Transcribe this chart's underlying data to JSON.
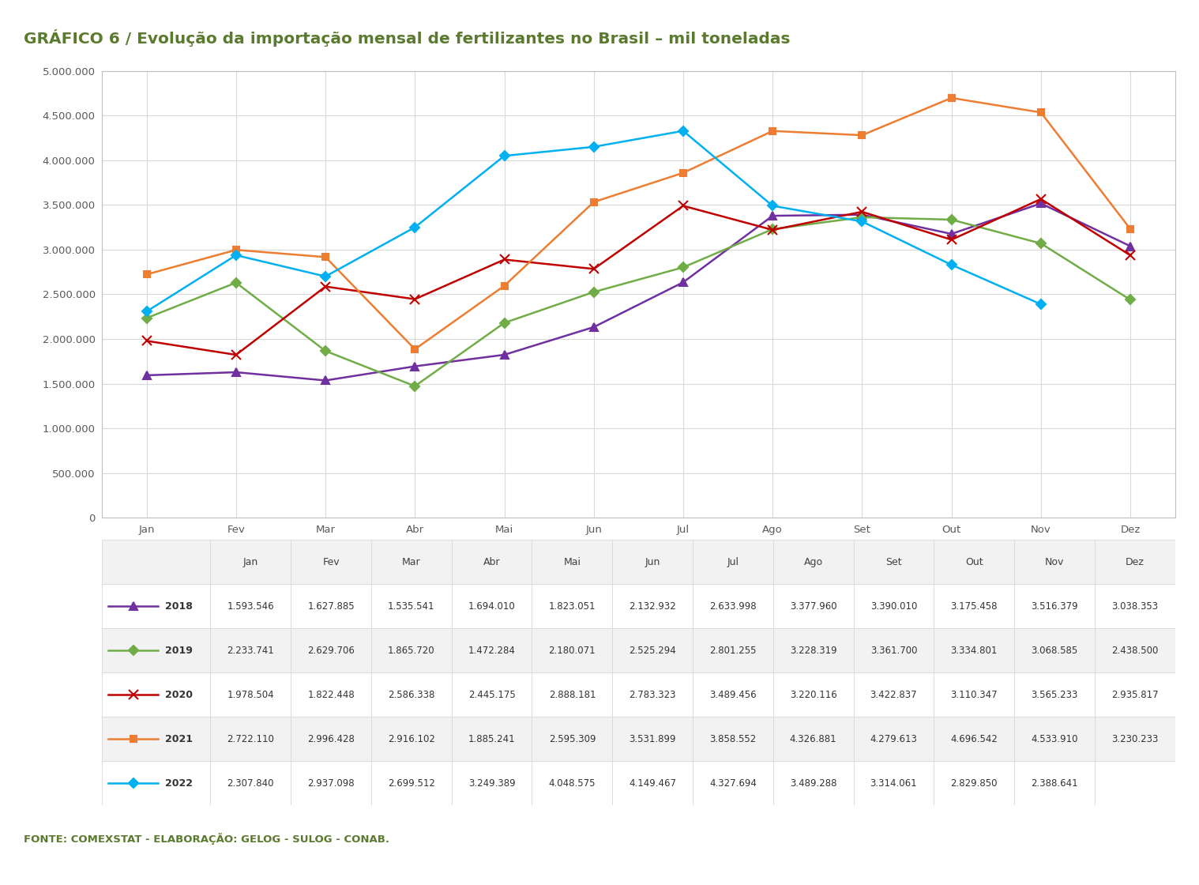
{
  "title": "GRÁFICO 6 / Evolução da importação mensal de fertilizantes no Brasil – mil toneladas",
  "title_color": "#5a7a2e",
  "title_fontsize": 14.5,
  "fonte": "FONTE: COMEXSTAT - ELABORAÇÃO: GELOG - SULOG - CONAB.",
  "fonte_color": "#5a7a2e",
  "months": [
    "Jan",
    "Fev",
    "Mar",
    "Abr",
    "Mai",
    "Jun",
    "Jul",
    "Ago",
    "Set",
    "Out",
    "Nov",
    "Dez"
  ],
  "series": [
    {
      "label": "2018",
      "color": "#7030a0",
      "marker": "^",
      "markersize": 7,
      "values": [
        1593546,
        1627885,
        1535541,
        1694010,
        1823051,
        2132932,
        2633998,
        3377960,
        3390010,
        3175458,
        3516379,
        3038353
      ]
    },
    {
      "label": "2019",
      "color": "#70ad47",
      "marker": "D",
      "markersize": 6,
      "values": [
        2233741,
        2629706,
        1865720,
        1472284,
        2180071,
        2525294,
        2801255,
        3228319,
        3361700,
        3334801,
        3068585,
        2438500
      ]
    },
    {
      "label": "2020",
      "color": "#c00000",
      "marker": "x",
      "markersize": 8,
      "values": [
        1978504,
        1822448,
        2586338,
        2445175,
        2888181,
        2783323,
        3489456,
        3220116,
        3422837,
        3110347,
        3565233,
        2935817
      ]
    },
    {
      "label": "2021",
      "color": "#ed7d31",
      "marker": "s",
      "markersize": 6,
      "values": [
        2722110,
        2996428,
        2916102,
        1885241,
        2595309,
        3531899,
        3858552,
        4326881,
        4279613,
        4696542,
        4533910,
        3230233
      ]
    },
    {
      "label": "2022",
      "color": "#00b0f0",
      "marker": "D",
      "markersize": 6,
      "values": [
        2307840,
        2937098,
        2699512,
        3249389,
        4048575,
        4149467,
        4327694,
        3489288,
        3314061,
        2829850,
        2388641,
        null
      ]
    }
  ],
  "ylim": [
    0,
    5000000
  ],
  "yticks": [
    0,
    500000,
    1000000,
    1500000,
    2000000,
    2500000,
    3000000,
    3500000,
    4000000,
    4500000,
    5000000
  ],
  "background_color": "#ffffff",
  "plot_bg_color": "#ffffff",
  "grid_color": "#d9d9d9",
  "box_color": "#bfbfbf",
  "table_header_bg": "#f2f2f2",
  "table_row_colors": [
    "#ffffff",
    "#f2f2f2"
  ],
  "table_border_color": "#d9d9d9",
  "month_label_color": "#595959",
  "ytick_color": "#595959"
}
